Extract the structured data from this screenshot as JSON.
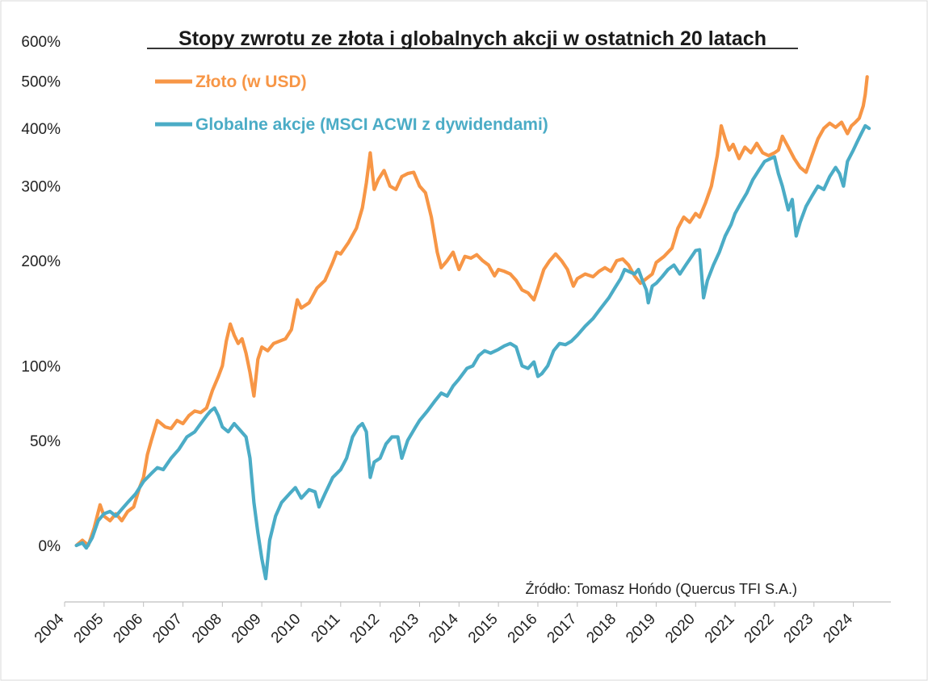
{
  "chart_data": {
    "type": "line",
    "title": "Stopy zwrotu ze złota i globalnych akcji w ostatnich 20 latach",
    "source": "Źródło: Tomasz Hońdo (Quercus TFI S.A.)",
    "y_scale": "log",
    "y_ticks": [
      "0%",
      "50%",
      "100%",
      "200%",
      "300%",
      "400%",
      "500%",
      "600%"
    ],
    "y_tick_values": [
      0,
      50,
      100,
      200,
      300,
      400,
      500,
      600
    ],
    "x_ticks": [
      "2004",
      "2005",
      "2006",
      "2007",
      "2008",
      "2009",
      "2010",
      "2011",
      "2012",
      "2013",
      "2014",
      "2015",
      "2016",
      "2017",
      "2018",
      "2019",
      "2020",
      "2021",
      "2022",
      "2023",
      "2024"
    ],
    "xlim": [
      2004,
      2024.95
    ],
    "ylim": [
      -15,
      600
    ],
    "legend_placement": "top-left",
    "grid": false,
    "series": [
      {
        "name": "Złoto (w USD)",
        "color": "#F79646",
        "points": [
          [
            2004.3,
            0
          ],
          [
            2004.45,
            2
          ],
          [
            2004.6,
            0
          ],
          [
            2004.75,
            7
          ],
          [
            2004.9,
            17
          ],
          [
            2005.0,
            12
          ],
          [
            2005.15,
            10
          ],
          [
            2005.3,
            13
          ],
          [
            2005.45,
            10
          ],
          [
            2005.6,
            14
          ],
          [
            2005.75,
            16
          ],
          [
            2005.9,
            25
          ],
          [
            2006.0,
            30
          ],
          [
            2006.1,
            42
          ],
          [
            2006.2,
            50
          ],
          [
            2006.35,
            62
          ],
          [
            2006.45,
            60
          ],
          [
            2006.55,
            58
          ],
          [
            2006.7,
            57
          ],
          [
            2006.85,
            62
          ],
          [
            2007.0,
            60
          ],
          [
            2007.15,
            65
          ],
          [
            2007.3,
            68
          ],
          [
            2007.45,
            67
          ],
          [
            2007.6,
            70
          ],
          [
            2007.75,
            82
          ],
          [
            2007.9,
            92
          ],
          [
            2008.0,
            100
          ],
          [
            2008.1,
            120
          ],
          [
            2008.2,
            135
          ],
          [
            2008.3,
            125
          ],
          [
            2008.4,
            118
          ],
          [
            2008.5,
            122
          ],
          [
            2008.6,
            110
          ],
          [
            2008.7,
            95
          ],
          [
            2008.8,
            78
          ],
          [
            2008.9,
            105
          ],
          [
            2009.0,
            115
          ],
          [
            2009.15,
            112
          ],
          [
            2009.3,
            118
          ],
          [
            2009.45,
            120
          ],
          [
            2009.6,
            122
          ],
          [
            2009.75,
            130
          ],
          [
            2009.9,
            158
          ],
          [
            2010.0,
            150
          ],
          [
            2010.2,
            155
          ],
          [
            2010.4,
            170
          ],
          [
            2010.6,
            178
          ],
          [
            2010.8,
            198
          ],
          [
            2010.9,
            210
          ],
          [
            2011.0,
            208
          ],
          [
            2011.2,
            222
          ],
          [
            2011.4,
            240
          ],
          [
            2011.55,
            268
          ],
          [
            2011.65,
            305
          ],
          [
            2011.75,
            355
          ],
          [
            2011.85,
            295
          ],
          [
            2011.95,
            310
          ],
          [
            2012.1,
            325
          ],
          [
            2012.25,
            300
          ],
          [
            2012.4,
            295
          ],
          [
            2012.55,
            315
          ],
          [
            2012.7,
            320
          ],
          [
            2012.85,
            322
          ],
          [
            2013.0,
            300
          ],
          [
            2013.15,
            290
          ],
          [
            2013.3,
            255
          ],
          [
            2013.45,
            210
          ],
          [
            2013.55,
            192
          ],
          [
            2013.7,
            200
          ],
          [
            2013.85,
            210
          ],
          [
            2014.0,
            190
          ],
          [
            2014.15,
            205
          ],
          [
            2014.3,
            203
          ],
          [
            2014.45,
            207
          ],
          [
            2014.6,
            200
          ],
          [
            2014.75,
            195
          ],
          [
            2014.9,
            183
          ],
          [
            2015.0,
            190
          ],
          [
            2015.15,
            188
          ],
          [
            2015.3,
            185
          ],
          [
            2015.45,
            178
          ],
          [
            2015.6,
            168
          ],
          [
            2015.75,
            165
          ],
          [
            2015.9,
            158
          ],
          [
            2016.0,
            170
          ],
          [
            2016.15,
            190
          ],
          [
            2016.3,
            200
          ],
          [
            2016.45,
            208
          ],
          [
            2016.6,
            200
          ],
          [
            2016.75,
            190
          ],
          [
            2016.9,
            172
          ],
          [
            2017.0,
            180
          ],
          [
            2017.2,
            185
          ],
          [
            2017.4,
            182
          ],
          [
            2017.55,
            188
          ],
          [
            2017.7,
            192
          ],
          [
            2017.85,
            188
          ],
          [
            2018.0,
            200
          ],
          [
            2018.15,
            202
          ],
          [
            2018.3,
            195
          ],
          [
            2018.45,
            183
          ],
          [
            2018.6,
            175
          ],
          [
            2018.75,
            180
          ],
          [
            2018.9,
            185
          ],
          [
            2019.0,
            198
          ],
          [
            2019.2,
            205
          ],
          [
            2019.4,
            215
          ],
          [
            2019.55,
            240
          ],
          [
            2019.7,
            255
          ],
          [
            2019.85,
            248
          ],
          [
            2020.0,
            260
          ],
          [
            2020.1,
            255
          ],
          [
            2020.25,
            275
          ],
          [
            2020.4,
            300
          ],
          [
            2020.55,
            350
          ],
          [
            2020.65,
            405
          ],
          [
            2020.75,
            380
          ],
          [
            2020.85,
            360
          ],
          [
            2020.95,
            370
          ],
          [
            2021.1,
            345
          ],
          [
            2021.25,
            365
          ],
          [
            2021.4,
            355
          ],
          [
            2021.55,
            372
          ],
          [
            2021.7,
            355
          ],
          [
            2021.85,
            350
          ],
          [
            2022.0,
            355
          ],
          [
            2022.1,
            360
          ],
          [
            2022.2,
            385
          ],
          [
            2022.35,
            365
          ],
          [
            2022.5,
            345
          ],
          [
            2022.65,
            330
          ],
          [
            2022.8,
            322
          ],
          [
            2022.95,
            350
          ],
          [
            2023.1,
            380
          ],
          [
            2023.25,
            400
          ],
          [
            2023.4,
            410
          ],
          [
            2023.55,
            402
          ],
          [
            2023.7,
            412
          ],
          [
            2023.85,
            390
          ],
          [
            2023.95,
            405
          ],
          [
            2024.05,
            412
          ],
          [
            2024.15,
            420
          ],
          [
            2024.25,
            445
          ],
          [
            2024.3,
            470
          ],
          [
            2024.35,
            510
          ]
        ]
      },
      {
        "name": "Globalne akcje (MSCI ACWI z dywidendami)",
        "color": "#4BACC6",
        "points": [
          [
            2004.3,
            0
          ],
          [
            2004.45,
            1
          ],
          [
            2004.55,
            -1
          ],
          [
            2004.7,
            3
          ],
          [
            2004.85,
            10
          ],
          [
            2005.0,
            13
          ],
          [
            2005.15,
            14
          ],
          [
            2005.3,
            12
          ],
          [
            2005.45,
            15
          ],
          [
            2005.6,
            18
          ],
          [
            2005.8,
            22
          ],
          [
            2006.0,
            28
          ],
          [
            2006.2,
            32
          ],
          [
            2006.35,
            35
          ],
          [
            2006.5,
            34
          ],
          [
            2006.7,
            40
          ],
          [
            2006.9,
            45
          ],
          [
            2007.1,
            52
          ],
          [
            2007.3,
            55
          ],
          [
            2007.45,
            60
          ],
          [
            2007.6,
            65
          ],
          [
            2007.7,
            68
          ],
          [
            2007.8,
            70
          ],
          [
            2007.9,
            65
          ],
          [
            2008.0,
            58
          ],
          [
            2008.15,
            55
          ],
          [
            2008.3,
            60
          ],
          [
            2008.45,
            56
          ],
          [
            2008.6,
            52
          ],
          [
            2008.7,
            40
          ],
          [
            2008.8,
            18
          ],
          [
            2008.9,
            5
          ],
          [
            2009.0,
            -5
          ],
          [
            2009.1,
            -12
          ],
          [
            2009.2,
            2
          ],
          [
            2009.35,
            12
          ],
          [
            2009.5,
            18
          ],
          [
            2009.7,
            22
          ],
          [
            2009.85,
            25
          ],
          [
            2010.0,
            20
          ],
          [
            2010.2,
            24
          ],
          [
            2010.35,
            23
          ],
          [
            2010.45,
            16
          ],
          [
            2010.6,
            22
          ],
          [
            2010.8,
            30
          ],
          [
            2011.0,
            34
          ],
          [
            2011.15,
            40
          ],
          [
            2011.3,
            52
          ],
          [
            2011.45,
            58
          ],
          [
            2011.55,
            60
          ],
          [
            2011.65,
            55
          ],
          [
            2011.75,
            30
          ],
          [
            2011.85,
            38
          ],
          [
            2012.0,
            40
          ],
          [
            2012.15,
            48
          ],
          [
            2012.3,
            52
          ],
          [
            2012.45,
            52
          ],
          [
            2012.55,
            40
          ],
          [
            2012.7,
            50
          ],
          [
            2012.9,
            58
          ],
          [
            2013.0,
            62
          ],
          [
            2013.2,
            68
          ],
          [
            2013.4,
            75
          ],
          [
            2013.55,
            80
          ],
          [
            2013.7,
            78
          ],
          [
            2013.85,
            85
          ],
          [
            2014.0,
            90
          ],
          [
            2014.2,
            98
          ],
          [
            2014.35,
            100
          ],
          [
            2014.5,
            108
          ],
          [
            2014.65,
            112
          ],
          [
            2014.8,
            110
          ],
          [
            2015.0,
            113
          ],
          [
            2015.15,
            116
          ],
          [
            2015.3,
            118
          ],
          [
            2015.45,
            115
          ],
          [
            2015.6,
            100
          ],
          [
            2015.75,
            98
          ],
          [
            2015.9,
            103
          ],
          [
            2016.0,
            92
          ],
          [
            2016.1,
            94
          ],
          [
            2016.25,
            100
          ],
          [
            2016.4,
            112
          ],
          [
            2016.55,
            118
          ],
          [
            2016.7,
            117
          ],
          [
            2016.85,
            120
          ],
          [
            2017.0,
            125
          ],
          [
            2017.2,
            133
          ],
          [
            2017.4,
            140
          ],
          [
            2017.6,
            150
          ],
          [
            2017.8,
            160
          ],
          [
            2017.95,
            170
          ],
          [
            2018.1,
            180
          ],
          [
            2018.2,
            190
          ],
          [
            2018.3,
            188
          ],
          [
            2018.45,
            185
          ],
          [
            2018.55,
            190
          ],
          [
            2018.65,
            178
          ],
          [
            2018.75,
            168
          ],
          [
            2018.8,
            155
          ],
          [
            2018.9,
            172
          ],
          [
            2019.0,
            175
          ],
          [
            2019.15,
            182
          ],
          [
            2019.3,
            190
          ],
          [
            2019.45,
            195
          ],
          [
            2019.6,
            185
          ],
          [
            2019.75,
            195
          ],
          [
            2019.9,
            205
          ],
          [
            2020.0,
            212
          ],
          [
            2020.1,
            213
          ],
          [
            2020.2,
            160
          ],
          [
            2020.3,
            178
          ],
          [
            2020.45,
            195
          ],
          [
            2020.6,
            210
          ],
          [
            2020.75,
            230
          ],
          [
            2020.9,
            245
          ],
          [
            2021.0,
            260
          ],
          [
            2021.15,
            275
          ],
          [
            2021.3,
            290
          ],
          [
            2021.45,
            310
          ],
          [
            2021.6,
            325
          ],
          [
            2021.75,
            340
          ],
          [
            2021.9,
            345
          ],
          [
            2022.0,
            348
          ],
          [
            2022.1,
            320
          ],
          [
            2022.2,
            300
          ],
          [
            2022.35,
            265
          ],
          [
            2022.45,
            280
          ],
          [
            2022.55,
            230
          ],
          [
            2022.65,
            248
          ],
          [
            2022.8,
            270
          ],
          [
            2022.95,
            285
          ],
          [
            2023.1,
            300
          ],
          [
            2023.25,
            295
          ],
          [
            2023.4,
            315
          ],
          [
            2023.55,
            330
          ],
          [
            2023.65,
            320
          ],
          [
            2023.75,
            300
          ],
          [
            2023.85,
            340
          ],
          [
            2024.0,
            360
          ],
          [
            2024.1,
            375
          ],
          [
            2024.2,
            390
          ],
          [
            2024.3,
            405
          ],
          [
            2024.4,
            400
          ]
        ]
      }
    ]
  }
}
